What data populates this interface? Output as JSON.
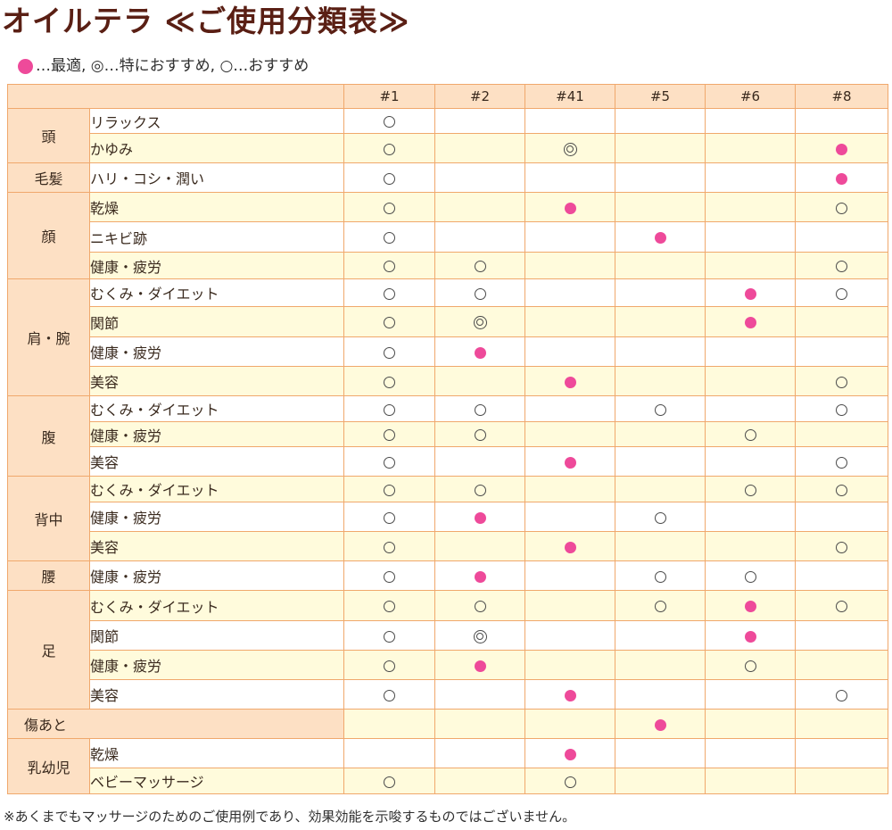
{
  "title": "オイルテラ ≪ご使用分類表≫",
  "legend": {
    "text": "…最適, ◎…特におすすめ, ○…おすすめ"
  },
  "colors": {
    "best": "#ee4a9a",
    "header_bg": "#fde0c4",
    "row_alt": "#fffbdc",
    "border": "#f0a86c",
    "title": "#5a1f14"
  },
  "columns": [
    "#1",
    "#2",
    "#41",
    "#5",
    "#6",
    "#8"
  ],
  "groups": [
    {
      "body": "頭",
      "rows": [
        {
          "label": "リラックス",
          "marks": [
            "o",
            "",
            "",
            "",
            "",
            ""
          ]
        },
        {
          "label": "かゆみ",
          "marks": [
            "o",
            "",
            "d",
            "",
            "",
            "b"
          ]
        }
      ]
    },
    {
      "body": "毛髪",
      "rows": [
        {
          "label": "ハリ・コシ・潤い",
          "marks": [
            "o",
            "",
            "",
            "",
            "",
            "b"
          ]
        }
      ]
    },
    {
      "body": "顔",
      "rows": [
        {
          "label": "乾燥",
          "marks": [
            "o",
            "",
            "b",
            "",
            "",
            "o"
          ]
        },
        {
          "label": "ニキビ跡",
          "marks": [
            "o",
            "",
            "",
            "b",
            "",
            ""
          ]
        },
        {
          "label": "健康・疲労",
          "marks": [
            "o",
            "o",
            "",
            "",
            "",
            "o"
          ]
        }
      ]
    },
    {
      "body": "肩・腕",
      "rows": [
        {
          "label": "むくみ・ダイエット",
          "marks": [
            "o",
            "o",
            "",
            "",
            "b",
            "o"
          ]
        },
        {
          "label": "関節",
          "marks": [
            "o",
            "d",
            "",
            "",
            "b",
            ""
          ]
        },
        {
          "label": "健康・疲労",
          "marks": [
            "o",
            "b",
            "",
            "",
            "",
            ""
          ]
        },
        {
          "label": "美容",
          "marks": [
            "o",
            "",
            "b",
            "",
            "",
            "o"
          ]
        }
      ]
    },
    {
      "body": "腹",
      "rows": [
        {
          "label": "むくみ・ダイエット",
          "marks": [
            "o",
            "o",
            "",
            "o",
            "",
            "o"
          ]
        },
        {
          "label": "健康・疲労",
          "marks": [
            "o",
            "o",
            "",
            "",
            "o",
            ""
          ]
        },
        {
          "label": "美容",
          "marks": [
            "o",
            "",
            "b",
            "",
            "",
            "o"
          ]
        }
      ]
    },
    {
      "body": "背中",
      "rows": [
        {
          "label": "むくみ・ダイエット",
          "marks": [
            "o",
            "o",
            "",
            "",
            "o",
            "o"
          ]
        },
        {
          "label": "健康・疲労",
          "marks": [
            "o",
            "b",
            "",
            "o",
            "",
            ""
          ]
        },
        {
          "label": "美容",
          "marks": [
            "o",
            "",
            "b",
            "",
            "",
            "o"
          ]
        }
      ]
    },
    {
      "body": "腰",
      "rows": [
        {
          "label": "健康・疲労",
          "marks": [
            "o",
            "b",
            "",
            "o",
            "o",
            ""
          ]
        }
      ]
    },
    {
      "body": "足",
      "rows": [
        {
          "label": "むくみ・ダイエット",
          "marks": [
            "o",
            "o",
            "",
            "o",
            "b",
            "o"
          ]
        },
        {
          "label": "関節",
          "marks": [
            "o",
            "d",
            "",
            "",
            "b",
            ""
          ]
        },
        {
          "label": "健康・疲労",
          "marks": [
            "o",
            "b",
            "",
            "",
            "o",
            ""
          ]
        },
        {
          "label": "美容",
          "marks": [
            "o",
            "",
            "b",
            "",
            "",
            "o"
          ]
        }
      ]
    },
    {
      "body": "傷あと",
      "rows": [
        {
          "label": "",
          "marks": [
            "",
            "",
            "",
            "b",
            "",
            ""
          ]
        }
      ]
    },
    {
      "body": "乳幼児",
      "rows": [
        {
          "label": "乾燥",
          "marks": [
            "",
            "",
            "b",
            "",
            "",
            ""
          ]
        },
        {
          "label": "ベビーマッサージ",
          "marks": [
            "o",
            "",
            "o",
            "",
            "",
            ""
          ]
        }
      ]
    }
  ],
  "footnote": "※あくまでもマッサージのためのご使用例であり、効果効能を示唆するものではございません。"
}
